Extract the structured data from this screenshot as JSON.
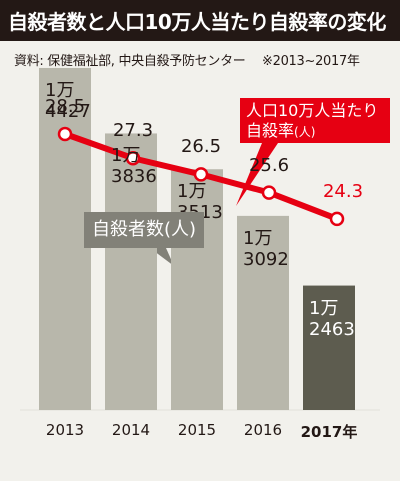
{
  "header": {
    "title": "自殺者数と人口10万人当たり自殺率の変化",
    "source": "資料: 保健福祉部, 中央自殺予防センター　 ※2013~2017年"
  },
  "colors": {
    "title_bg": "#231815",
    "background": "#f2f1ec",
    "bar": "#b8b7ab",
    "bar_highlight": "#5d5c4f",
    "line": "#e60012",
    "callout_gray": "#828178"
  },
  "callouts": {
    "rate_line1": "人口10万人当たり",
    "rate_line2": "自殺率",
    "rate_unit": "(人)",
    "count_label": "自殺者数(人)"
  },
  "chart_data": {
    "type": "bar+line",
    "categories": [
      "2013",
      "2014",
      "2015",
      "2016",
      "2017年"
    ],
    "bar_series": {
      "name": "自殺者数(人)",
      "values": [
        14427,
        13836,
        13513,
        13092,
        12463
      ],
      "labels": [
        [
          "1万",
          "4427"
        ],
        [
          "1万",
          "3836"
        ],
        [
          "1万",
          "3513"
        ],
        [
          "1万",
          "3092"
        ],
        [
          "1万",
          "2463"
        ]
      ]
    },
    "line_series": {
      "name": "人口10万人当たり自殺率(人)",
      "values": [
        28.5,
        27.3,
        26.5,
        25.6,
        24.3
      ],
      "labels": [
        "28.5",
        "27.3",
        "26.5",
        "25.6",
        "24.3"
      ]
    },
    "highlight_index": 4,
    "grid": false
  }
}
